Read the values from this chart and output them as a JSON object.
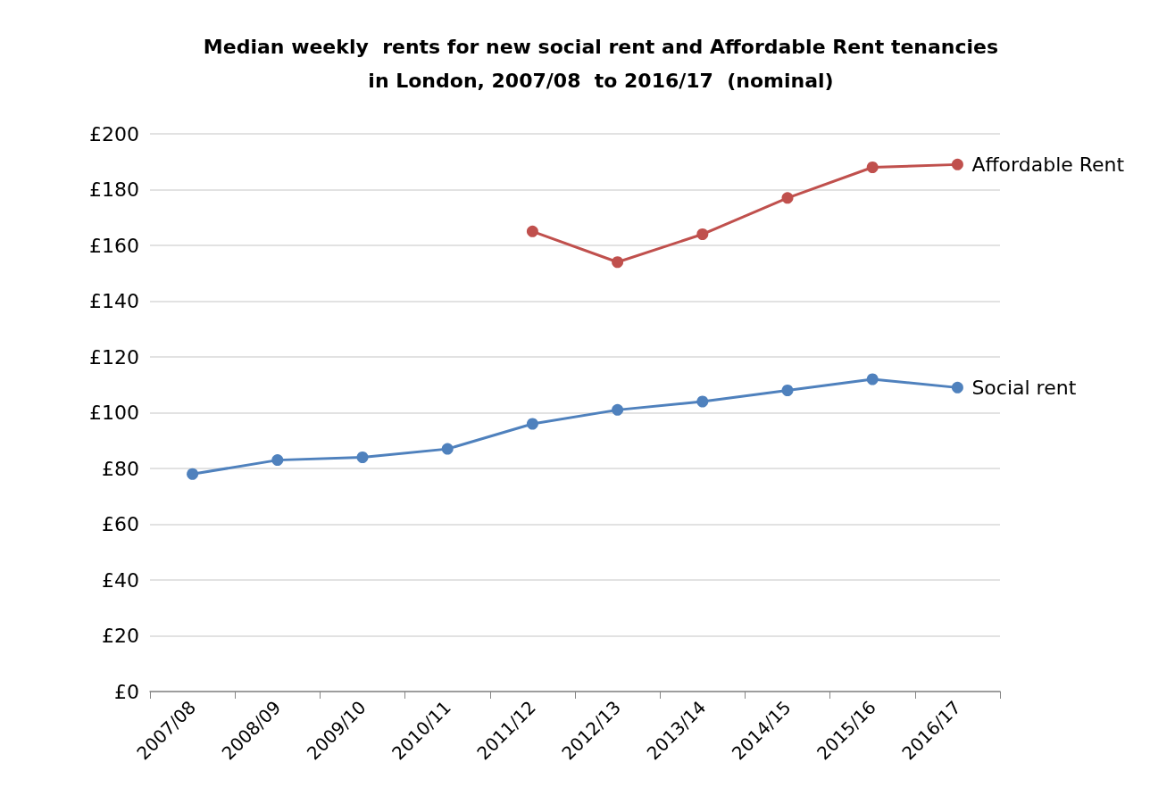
{
  "chart_data": {
    "type": "line",
    "title": "Median weekly  rents for new social rent and Affordable Rent tenancies\nin London, 2007/08  to 2016/17  (nominal)",
    "categories": [
      "2007/08",
      "2008/09",
      "2009/10",
      "2010/11",
      "2011/12",
      "2012/13",
      "2013/14",
      "2014/15",
      "2015/16",
      "2016/17"
    ],
    "series": [
      {
        "name": "Affordable Rent",
        "color": "#c0504d",
        "values": [
          null,
          null,
          null,
          null,
          165,
          154,
          164,
          177,
          188,
          189
        ]
      },
      {
        "name": "Social rent",
        "color": "#4f81bd",
        "values": [
          78,
          83,
          84,
          87,
          96,
          101,
          104,
          108,
          112,
          109
        ]
      }
    ],
    "ylim": [
      0,
      200
    ],
    "yticks": [
      {
        "value": 0,
        "label": "£0"
      },
      {
        "value": 20,
        "label": "£20"
      },
      {
        "value": 40,
        "label": "£40"
      },
      {
        "value": 60,
        "label": "£60"
      },
      {
        "value": 80,
        "label": "£80"
      },
      {
        "value": 100,
        "label": "£100"
      },
      {
        "value": 120,
        "label": "£120"
      },
      {
        "value": 140,
        "label": "£140"
      },
      {
        "value": 160,
        "label": "£160"
      },
      {
        "value": 180,
        "label": "£180"
      },
      {
        "value": 200,
        "label": "£200"
      }
    ],
    "grid": "y",
    "marker": "circle",
    "line_style": "solid"
  }
}
